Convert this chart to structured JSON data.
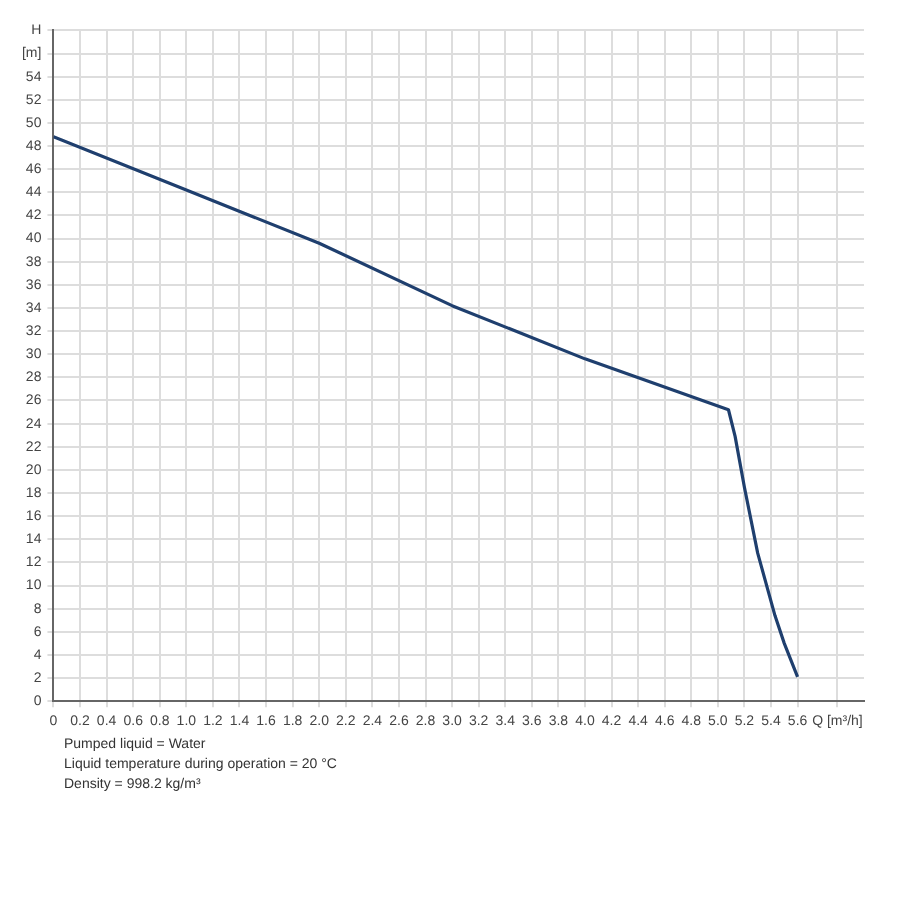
{
  "chart_data": {
    "type": "line",
    "x": [
      0,
      1,
      2,
      3,
      4,
      5.08,
      5.13,
      5.2,
      5.3,
      5.43,
      5.5,
      5.6
    ],
    "series": [
      {
        "color": "#1f3f6e",
        "values": [
          48.8,
          44.2,
          39.6,
          34.2,
          29.6,
          25.2,
          22.9,
          18.5,
          12.8,
          7.4,
          5.0,
          2.1
        ]
      }
    ],
    "xlim": [
      0,
      6.1
    ],
    "xticks": [
      0,
      0.2,
      0.4,
      0.6,
      0.8,
      {
        "value": 1,
        "label": "1.0"
      },
      1.2,
      1.4,
      1.6,
      1.8,
      {
        "value": 2,
        "label": "2.0"
      },
      2.2,
      2.4,
      2.6,
      2.8,
      {
        "value": 3,
        "label": "3.0"
      },
      3.2,
      3.4,
      3.6,
      3.8,
      {
        "value": 4,
        "label": "4.0"
      },
      4.2,
      4.4,
      4.6,
      4.8,
      {
        "value": 5,
        "label": "5.0"
      },
      5.2,
      5.4,
      5.6,
      {
        "value": 5.9,
        "label": "Q [m³/h]"
      }
    ],
    "ylim": [
      0,
      58
    ],
    "yticks": [
      0,
      2,
      4,
      6,
      8,
      10,
      12,
      14,
      16,
      18,
      20,
      22,
      24,
      26,
      28,
      30,
      32,
      34,
      36,
      38,
      40,
      42,
      44,
      46,
      48,
      50,
      52,
      54,
      {
        "value": 56,
        "label": "[m]"
      },
      {
        "value": 58,
        "label": "H"
      }
    ],
    "grid": true,
    "legend": false,
    "marker": "none",
    "line_style": "solid",
    "annotations": [
      "Pumped liquid = Water",
      "Liquid temperature during operation = 20 °C",
      "Density = 998.2 kg/m³"
    ]
  }
}
